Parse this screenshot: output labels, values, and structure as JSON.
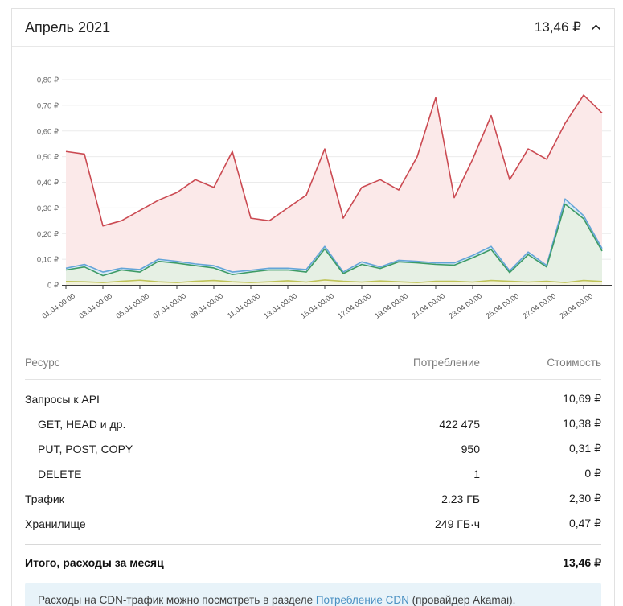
{
  "header": {
    "title": "Апрель 2021",
    "total": "13,46 ₽",
    "chevron": "chevron-up"
  },
  "chart_data": {
    "type": "area",
    "title": "",
    "xlabel": "",
    "ylabel": "",
    "ylim": [
      0,
      0.8
    ],
    "grid": true,
    "legend": "none",
    "y_ticks": [
      "0 ₽",
      "0,10 ₽",
      "0,20 ₽",
      "0,30 ₽",
      "0,40 ₽",
      "0,50 ₽",
      "0,60 ₽",
      "0,70 ₽",
      "0,80 ₽"
    ],
    "x_tick_labels": [
      "01.04 00:00",
      "03.04 00:00",
      "05.04 00:00",
      "07.04 00:00",
      "09.04 00:00",
      "11.04 00:00",
      "13.04 00:00",
      "15.04 00:00",
      "17.04 00:00",
      "19.04 00:00",
      "21.04 00:00",
      "23.04 00:00",
      "25.04 00:00",
      "27.04 00:00",
      "29.04 00:00"
    ],
    "points_per_series": 30,
    "series": [
      {
        "name": "red-series",
        "color": "#cb4a52",
        "fill": "#fbe9e9",
        "values": [
          0.52,
          0.51,
          0.23,
          0.25,
          0.29,
          0.33,
          0.36,
          0.41,
          0.38,
          0.52,
          0.26,
          0.25,
          0.3,
          0.35,
          0.53,
          0.26,
          0.38,
          0.41,
          0.37,
          0.5,
          0.73,
          0.34,
          0.49,
          0.66,
          0.41,
          0.53,
          0.49,
          0.63,
          0.74,
          0.67
        ]
      },
      {
        "name": "blue-series",
        "color": "#64a5d8",
        "fill": "#d9eaf7",
        "values": [
          0.065,
          0.08,
          0.05,
          0.065,
          0.06,
          0.1,
          0.092,
          0.082,
          0.075,
          0.05,
          0.057,
          0.065,
          0.065,
          0.06,
          0.15,
          0.05,
          0.09,
          0.07,
          0.096,
          0.092,
          0.086,
          0.086,
          0.115,
          0.15,
          0.055,
          0.128,
          0.076,
          0.335,
          0.27,
          0.142
        ]
      },
      {
        "name": "green-series",
        "color": "#3d9b66",
        "fill": "#e6f0e4",
        "values": [
          0.058,
          0.07,
          0.036,
          0.058,
          0.05,
          0.092,
          0.085,
          0.075,
          0.066,
          0.04,
          0.05,
          0.058,
          0.058,
          0.05,
          0.14,
          0.044,
          0.08,
          0.064,
          0.09,
          0.086,
          0.08,
          0.077,
          0.106,
          0.138,
          0.048,
          0.118,
          0.07,
          0.315,
          0.258,
          0.132
        ]
      },
      {
        "name": "yellow-series",
        "color": "#bfc357",
        "fill": "#f2f2dc",
        "values": [
          0.013,
          0.012,
          0.009,
          0.014,
          0.018,
          0.012,
          0.009,
          0.014,
          0.017,
          0.012,
          0.009,
          0.012,
          0.016,
          0.011,
          0.019,
          0.014,
          0.011,
          0.015,
          0.012,
          0.009,
          0.014,
          0.014,
          0.011,
          0.017,
          0.014,
          0.011,
          0.014,
          0.009,
          0.017,
          0.013
        ]
      }
    ]
  },
  "table": {
    "columns": {
      "resource": "Ресурс",
      "consumption": "Потребление",
      "cost": "Стоимость"
    },
    "rows": [
      {
        "label": "Запросы к API",
        "consumption": "",
        "cost": "10,69 ₽",
        "indent": false
      },
      {
        "label": "GET, HEAD и др.",
        "consumption": "422 475",
        "cost": "10,38 ₽",
        "indent": true
      },
      {
        "label": "PUT, POST, COPY",
        "consumption": "950",
        "cost": "0,31 ₽",
        "indent": true
      },
      {
        "label": "DELETE",
        "consumption": "1",
        "cost": "0 ₽",
        "indent": true
      },
      {
        "label": "Трафик",
        "consumption": "2.23 ГБ",
        "cost": "2,30 ₽",
        "indent": false
      },
      {
        "label": "Хранилище",
        "consumption": "249 ГБ·ч",
        "cost": "0,47 ₽",
        "indent": false
      }
    ],
    "total": {
      "label": "Итого, расходы за месяц",
      "cost": "13,46 ₽"
    }
  },
  "note": {
    "text_before": "Расходы на CDN-трафик можно посмотреть в разделе ",
    "link": "Потребление CDN",
    "text_after": " (провайдер Akamai)."
  }
}
